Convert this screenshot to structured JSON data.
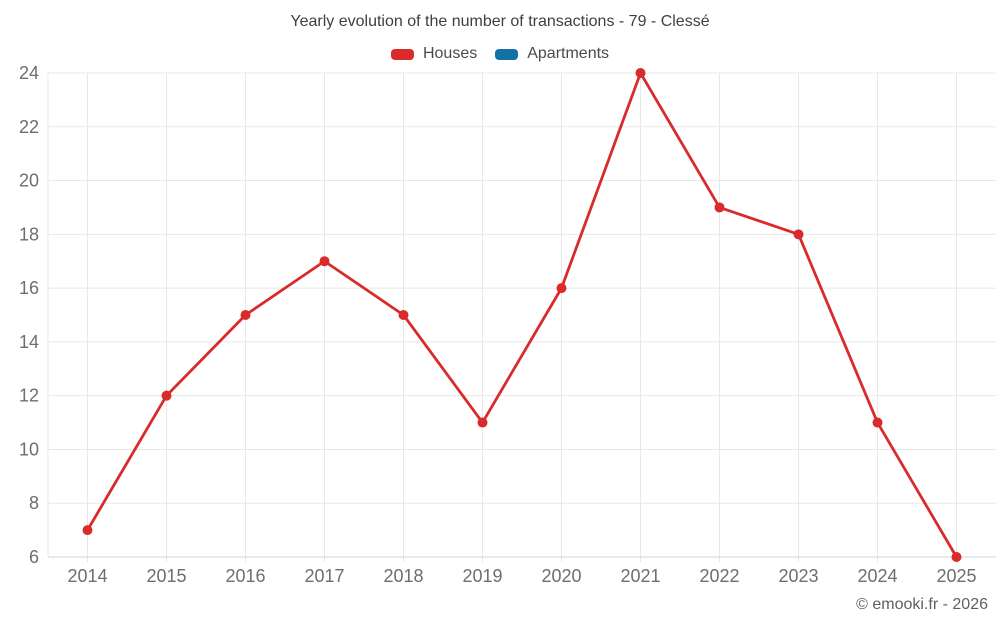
{
  "footer": {
    "credit": "© emooki.fr - 2026"
  },
  "chart_data": {
    "type": "line",
    "title": "Yearly evolution of the number of transactions - 79 - Clessé",
    "categories": [
      "2014",
      "2015",
      "2016",
      "2017",
      "2018",
      "2019",
      "2020",
      "2021",
      "2022",
      "2023",
      "2024",
      "2025"
    ],
    "series": [
      {
        "name": "Houses",
        "color": "#d92b2b",
        "values": [
          7,
          12,
          15,
          17,
          15,
          11,
          16,
          24,
          19,
          18,
          11,
          6
        ]
      },
      {
        "name": "Apartments",
        "color": "#1272a5",
        "values": []
      }
    ],
    "xlabel": "",
    "ylabel": "",
    "ylim": [
      6,
      24
    ],
    "ytick_step": 2,
    "grid": true,
    "legend_position": "top",
    "colors": {
      "gridline": "#e8e8e8",
      "axis_line": "#d4d4d4",
      "tick_label": "#6e6e6e"
    }
  }
}
